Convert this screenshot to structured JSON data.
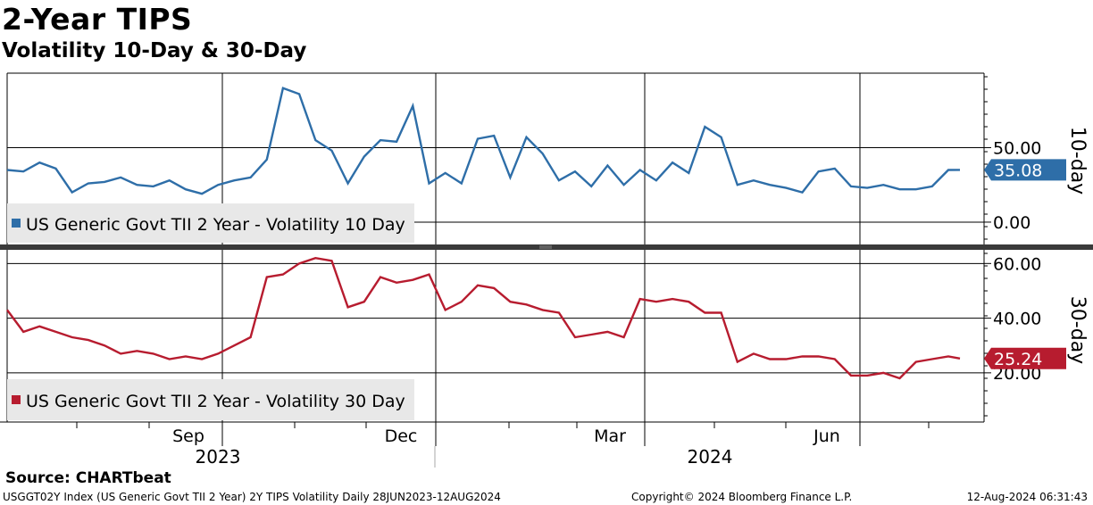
{
  "title": "2-Year TIPS",
  "subtitle": "Volatility 10-Day & 30-Day",
  "source": "Source: CHARTbeat",
  "footer": {
    "left": "USGGT02Y Index (US Generic Govt TII 2 Year) 2Y TIPS Volatility  Daily 28JUN2023-12AUG2024",
    "middle": "Copyright© 2024 Bloomberg Finance L.P.",
    "right": "12-Aug-2024 06:31:43"
  },
  "colors": {
    "series10": "#2e6ea8",
    "series30": "#b71c2f"
  },
  "x_axis": {
    "month_labels": [
      "Sep",
      "Dec",
      "Mar",
      "Jun"
    ],
    "year_labels": [
      "2023",
      "2024"
    ]
  },
  "chart_data": [
    {
      "type": "line",
      "panel": "top",
      "title": "Volatility 10-Day",
      "side_label": "10-day",
      "legend": "US Generic Govt TII 2 Year - Volatility 10 Day",
      "last_value_label": "35.08",
      "last_value": 35.08,
      "ylim": [
        -15,
        100
      ],
      "yticks": [
        0,
        50
      ],
      "ytick_labels": [
        "0.00",
        "50.00"
      ],
      "x_range": [
        "2023-06-28",
        "2024-08-12"
      ],
      "x": [
        "2023-06-28",
        "2023-07-05",
        "2023-07-12",
        "2023-07-19",
        "2023-07-26",
        "2023-08-02",
        "2023-08-09",
        "2023-08-16",
        "2023-08-23",
        "2023-08-30",
        "2023-09-06",
        "2023-09-13",
        "2023-09-20",
        "2023-09-27",
        "2023-10-04",
        "2023-10-11",
        "2023-10-18",
        "2023-10-25",
        "2023-11-01",
        "2023-11-08",
        "2023-11-15",
        "2023-11-22",
        "2023-11-29",
        "2023-12-06",
        "2023-12-13",
        "2023-12-20",
        "2023-12-27",
        "2024-01-03",
        "2024-01-10",
        "2024-01-17",
        "2024-01-24",
        "2024-01-31",
        "2024-02-07",
        "2024-02-14",
        "2024-02-21",
        "2024-02-28",
        "2024-03-06",
        "2024-03-13",
        "2024-03-20",
        "2024-03-27",
        "2024-04-03",
        "2024-04-10",
        "2024-04-17",
        "2024-04-24",
        "2024-05-01",
        "2024-05-08",
        "2024-05-15",
        "2024-05-22",
        "2024-05-29",
        "2024-06-05",
        "2024-06-12",
        "2024-06-19",
        "2024-06-26",
        "2024-07-03",
        "2024-07-10",
        "2024-07-17",
        "2024-07-24",
        "2024-07-31",
        "2024-08-07",
        "2024-08-12"
      ],
      "values": [
        35,
        34,
        40,
        36,
        20,
        26,
        27,
        30,
        25,
        24,
        28,
        22,
        19,
        25,
        28,
        30,
        42,
        90,
        86,
        55,
        48,
        26,
        44,
        55,
        54,
        78,
        26,
        33,
        26,
        56,
        58,
        30,
        57,
        46,
        28,
        34,
        24,
        38,
        25,
        35,
        28,
        40,
        33,
        64,
        57,
        25,
        28,
        25,
        23,
        20,
        34,
        36,
        24,
        23,
        25,
        22,
        22,
        24,
        35,
        35.08
      ]
    },
    {
      "type": "line",
      "panel": "bottom",
      "title": "Volatility 30-Day",
      "side_label": "30-day",
      "legend": "US Generic Govt TII 2 Year - Volatility 30 Day",
      "last_value_label": "25.24",
      "last_value": 25.24,
      "ylim": [
        2,
        65
      ],
      "yticks": [
        20,
        40,
        60
      ],
      "ytick_labels": [
        "20.00",
        "40.00",
        "60.00"
      ],
      "x_range": [
        "2023-06-28",
        "2024-08-12"
      ],
      "x": [
        "2023-06-28",
        "2023-07-05",
        "2023-07-12",
        "2023-07-19",
        "2023-07-26",
        "2023-08-02",
        "2023-08-09",
        "2023-08-16",
        "2023-08-23",
        "2023-08-30",
        "2023-09-06",
        "2023-09-13",
        "2023-09-20",
        "2023-09-27",
        "2023-10-04",
        "2023-10-11",
        "2023-10-18",
        "2023-10-25",
        "2023-11-01",
        "2023-11-08",
        "2023-11-15",
        "2023-11-22",
        "2023-11-29",
        "2023-12-06",
        "2023-12-13",
        "2023-12-20",
        "2023-12-27",
        "2024-01-03",
        "2024-01-10",
        "2024-01-17",
        "2024-01-24",
        "2024-01-31",
        "2024-02-07",
        "2024-02-14",
        "2024-02-21",
        "2024-02-28",
        "2024-03-06",
        "2024-03-13",
        "2024-03-20",
        "2024-03-27",
        "2024-04-03",
        "2024-04-10",
        "2024-04-17",
        "2024-04-24",
        "2024-05-01",
        "2024-05-08",
        "2024-05-15",
        "2024-05-22",
        "2024-05-29",
        "2024-06-05",
        "2024-06-12",
        "2024-06-19",
        "2024-06-26",
        "2024-07-03",
        "2024-07-10",
        "2024-07-17",
        "2024-07-24",
        "2024-07-31",
        "2024-08-07",
        "2024-08-12"
      ],
      "values": [
        43,
        35,
        37,
        35,
        33,
        32,
        30,
        27,
        28,
        27,
        25,
        26,
        25,
        27,
        30,
        33,
        55,
        56,
        60,
        62,
        61,
        44,
        46,
        55,
        53,
        54,
        56,
        43,
        46,
        52,
        51,
        46,
        45,
        43,
        42,
        33,
        34,
        35,
        33,
        47,
        46,
        47,
        46,
        42,
        42,
        24,
        27,
        25,
        25,
        26,
        26,
        25,
        19,
        19,
        20,
        18,
        24,
        25,
        26,
        25.24
      ]
    }
  ]
}
